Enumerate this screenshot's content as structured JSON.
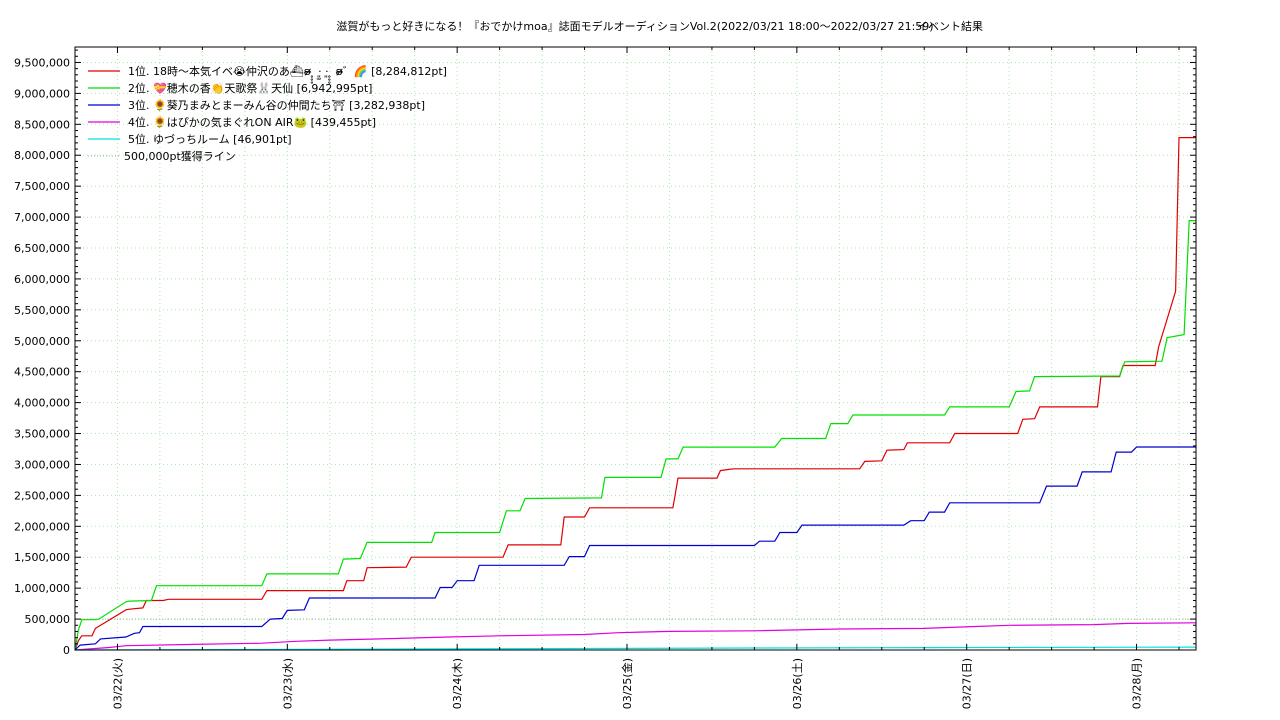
{
  "chart_data": {
    "type": "line",
    "title": "滋賀がもっと好きになる！『おでかけmoa』誌面モデルオーディションVol.2(2022/03/21 18:00～2022/03/27 21:59)",
    "subtitle": "イベント結果",
    "xlabel": "",
    "ylabel": "",
    "xlim": [
      0,
      6.15
    ],
    "ylim": [
      0,
      9750000
    ],
    "y_ticks": [
      0,
      500000,
      1000000,
      1500000,
      2000000,
      2500000,
      3000000,
      3500000,
      4000000,
      4500000,
      5000000,
      5500000,
      6000000,
      6500000,
      7000000,
      7500000,
      8000000,
      8500000,
      9000000,
      9500000
    ],
    "y_tick_labels": [
      "0",
      "500,000",
      "1,000,000",
      "1,500,000",
      "2,000,000",
      "2,500,000",
      "3,000,000",
      "3,500,000",
      "4,000,000",
      "4,500,000",
      "5,000,000",
      "5,500,000",
      "6,000,000",
      "6,500,000",
      "7,000,000",
      "7,500,000",
      "8,000,000",
      "8,500,000",
      "9,000,000",
      "9,500,000"
    ],
    "x_ticks": [
      0.25,
      1.25,
      2.25,
      3.25,
      4.25,
      5.25,
      6.25
    ],
    "x_tick_labels": [
      "03/22(火)",
      "03/23(水)",
      "03/24(木)",
      "03/25(金)",
      "03/26(土)",
      "03/27(日)",
      "03/28(月)"
    ],
    "grid": true,
    "legend_position": "top-left",
    "reference_line": {
      "name": "500,000pt獲得ライン",
      "value": 500000,
      "color": "#8fbf8f"
    },
    "series": [
      {
        "name": "1位. 18時〜本気イベ😭仲沢のあ⛴︎ʚ̴̶̷̷ ̥̥̥ ·͈̫ ·͈ ̥̥̥ ʚ̴̶̷̷゛🌈 [8,284,812pt]",
        "color": "#e00000",
        "x": [
          0,
          0.02,
          0.04,
          0.1,
          0.12,
          0.3,
          0.32,
          0.4,
          0.42,
          0.52,
          0.55,
          1.1,
          1.13,
          1.58,
          1.6,
          1.7,
          1.72,
          1.95,
          1.98,
          2.52,
          2.55,
          2.86,
          2.88,
          3.0,
          3.03,
          3.52,
          3.55,
          3.78,
          3.8,
          3.85,
          3.88,
          4.62,
          4.65,
          4.75,
          4.78,
          4.88,
          4.9,
          5.15,
          5.18,
          5.55,
          5.58,
          5.65,
          5.68,
          6.02,
          6.04,
          6.15,
          6.17,
          6.36,
          6.38,
          6.48,
          6.5,
          6.53,
          6.55,
          6.6
        ],
        "y": [
          0,
          150000,
          230000,
          230000,
          350000,
          650000,
          660000,
          680000,
          800000,
          800000,
          820000,
          820000,
          960000,
          960000,
          1120000,
          1120000,
          1330000,
          1340000,
          1500000,
          1500000,
          1700000,
          1700000,
          2150000,
          2150000,
          2300000,
          2300000,
          2780000,
          2780000,
          2900000,
          2920000,
          2930000,
          2930000,
          3050000,
          3060000,
          3230000,
          3240000,
          3350000,
          3350000,
          3500000,
          3500000,
          3730000,
          3740000,
          3930000,
          3930000,
          4420000,
          4420000,
          4600000,
          4600000,
          4900000,
          5800000,
          8284812,
          8284812,
          8284812,
          8284812
        ]
      },
      {
        "name": "2位. 💝穂木の香👏天歌祭🐰天仙 [6,942,995pt]",
        "color": "#00e000",
        "x": [
          0,
          0.02,
          0.04,
          0.12,
          0.14,
          0.3,
          0.32,
          0.45,
          0.48,
          1.1,
          1.13,
          1.55,
          1.58,
          1.68,
          1.72,
          2.1,
          2.12,
          2.5,
          2.54,
          2.62,
          2.65,
          3.1,
          3.12,
          3.45,
          3.48,
          3.55,
          3.58,
          4.12,
          4.16,
          4.42,
          4.45,
          4.55,
          4.58,
          4.65,
          4.68,
          5.12,
          5.15,
          5.5,
          5.54,
          5.62,
          5.65,
          6.15,
          6.18,
          6.4,
          6.43,
          6.53,
          6.56,
          6.6
        ],
        "y": [
          0,
          320000,
          490000,
          490000,
          500000,
          780000,
          790000,
          800000,
          1040000,
          1040000,
          1230000,
          1230000,
          1470000,
          1480000,
          1740000,
          1740000,
          1900000,
          1900000,
          2250000,
          2250000,
          2450000,
          2460000,
          2790000,
          2790000,
          3090000,
          3090000,
          3280000,
          3280000,
          3420000,
          3420000,
          3660000,
          3660000,
          3800000,
          3800000,
          3800000,
          3800000,
          3930000,
          3930000,
          4180000,
          4190000,
          4420000,
          4430000,
          4660000,
          4670000,
          5050000,
          5100000,
          6942995,
          6942995
        ]
      },
      {
        "name": "3位. 🌻葵乃まみとまーみん谷の仲間たち⛩ [3,282,938pt]",
        "color": "#0000d0",
        "x": [
          0,
          0.03,
          0.12,
          0.15,
          0.25,
          0.3,
          0.35,
          0.38,
          0.4,
          1.1,
          1.15,
          1.22,
          1.25,
          1.35,
          1.38,
          2.12,
          2.15,
          2.22,
          2.25,
          2.35,
          2.38,
          2.88,
          2.91,
          3.0,
          3.03,
          4.0,
          4.03,
          4.12,
          4.15,
          4.25,
          4.28,
          4.88,
          4.92,
          5.0,
          5.03,
          5.12,
          5.15,
          5.55,
          5.58,
          5.62,
          5.65,
          5.68,
          5.72,
          5.9,
          5.93,
          6.1,
          6.13,
          6.22,
          6.25,
          6.3,
          6.33,
          6.6
        ],
        "y": [
          0,
          80000,
          100000,
          180000,
          200000,
          210000,
          270000,
          280000,
          380000,
          380000,
          500000,
          510000,
          640000,
          650000,
          840000,
          840000,
          1010000,
          1010000,
          1120000,
          1120000,
          1370000,
          1370000,
          1510000,
          1510000,
          1690000,
          1690000,
          1760000,
          1760000,
          1900000,
          1900000,
          2020000,
          2020000,
          2090000,
          2090000,
          2230000,
          2230000,
          2380000,
          2380000,
          2380000,
          2380000,
          2380000,
          2380000,
          2650000,
          2650000,
          2880000,
          2880000,
          3200000,
          3200000,
          3282938,
          3282938,
          3282938,
          3282938
        ]
      },
      {
        "name": "4位. 🌻はぴかの気まぐれON AIR🐸 [439,455pt]",
        "color": "#e000e0",
        "x": [
          0,
          0.2,
          0.3,
          0.7,
          1.1,
          1.3,
          1.5,
          1.8,
          2.2,
          2.5,
          3.0,
          3.2,
          3.5,
          4.0,
          4.5,
          5.0,
          5.3,
          5.5,
          6.0,
          6.2,
          6.6
        ],
        "y": [
          0,
          40000,
          70000,
          90000,
          110000,
          140000,
          160000,
          180000,
          210000,
          230000,
          250000,
          280000,
          300000,
          310000,
          340000,
          350000,
          380000,
          400000,
          410000,
          430000,
          439455
        ]
      },
      {
        "name": "5位. ゆづっちルーム [46,901pt]",
        "color": "#00e0e0",
        "x": [
          0,
          1.0,
          2.0,
          3.0,
          4.0,
          5.0,
          6.0,
          6.6
        ],
        "y": [
          0,
          8000,
          16000,
          24000,
          32000,
          38000,
          44000,
          46901
        ]
      }
    ]
  }
}
